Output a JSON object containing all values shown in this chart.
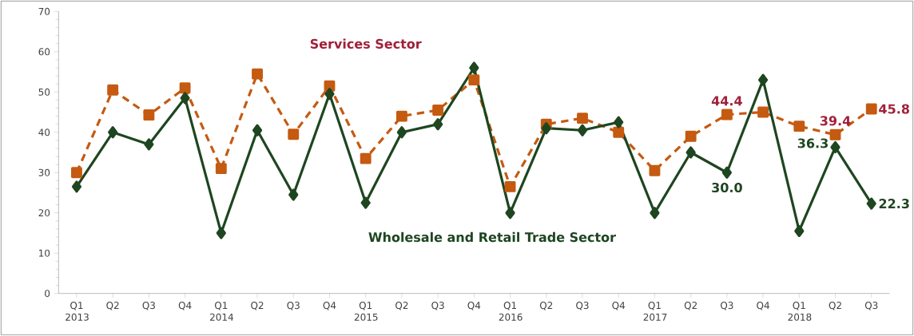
{
  "chart_data": {
    "type": "line",
    "categories": [
      "Q1 2013",
      "Q2",
      "Q3",
      "Q4",
      "Q1 2014",
      "Q2",
      "Q3",
      "Q4",
      "Q1 2015",
      "Q2",
      "Q3",
      "Q4",
      "Q1 2016",
      "Q2",
      "Q3",
      "Q4",
      "Q1 2017",
      "Q2",
      "Q3",
      "Q4",
      "Q1 2018",
      "Q2",
      "Q3"
    ],
    "series": [
      {
        "name": "Services Sector",
        "color": "#c55a11",
        "marker": "square",
        "line_style": "dashed",
        "values": [
          30,
          50.5,
          44.3,
          51,
          31,
          54.5,
          39.5,
          51.5,
          33.5,
          44,
          45.5,
          53,
          26.5,
          42,
          43.5,
          40,
          30.5,
          39,
          44.4,
          45,
          41.5,
          39.4,
          45.8
        ],
        "value_labels": [
          null,
          null,
          null,
          null,
          null,
          null,
          null,
          null,
          null,
          null,
          null,
          null,
          null,
          null,
          null,
          null,
          null,
          null,
          "44.4",
          null,
          null,
          "39.4",
          "45.8"
        ]
      },
      {
        "name": "Wholesale and Retail Trade Sector",
        "color": "#1e4620",
        "marker": "diamond",
        "line_style": "solid",
        "values": [
          26.5,
          40,
          37,
          48.5,
          15,
          40.5,
          24.5,
          49.5,
          22.5,
          40,
          42,
          56,
          20,
          41,
          40.5,
          42.5,
          20,
          35,
          30.0,
          53,
          15.5,
          36.3,
          22.3
        ],
        "value_labels": [
          null,
          null,
          null,
          null,
          null,
          null,
          null,
          null,
          null,
          null,
          null,
          null,
          null,
          null,
          null,
          null,
          null,
          null,
          "30.0",
          null,
          null,
          "36.3",
          "22.3"
        ]
      }
    ],
    "ylim": [
      0,
      70
    ],
    "yticks": [
      0,
      10,
      20,
      30,
      40,
      50,
      60,
      70
    ],
    "grid": false,
    "legend": false
  }
}
